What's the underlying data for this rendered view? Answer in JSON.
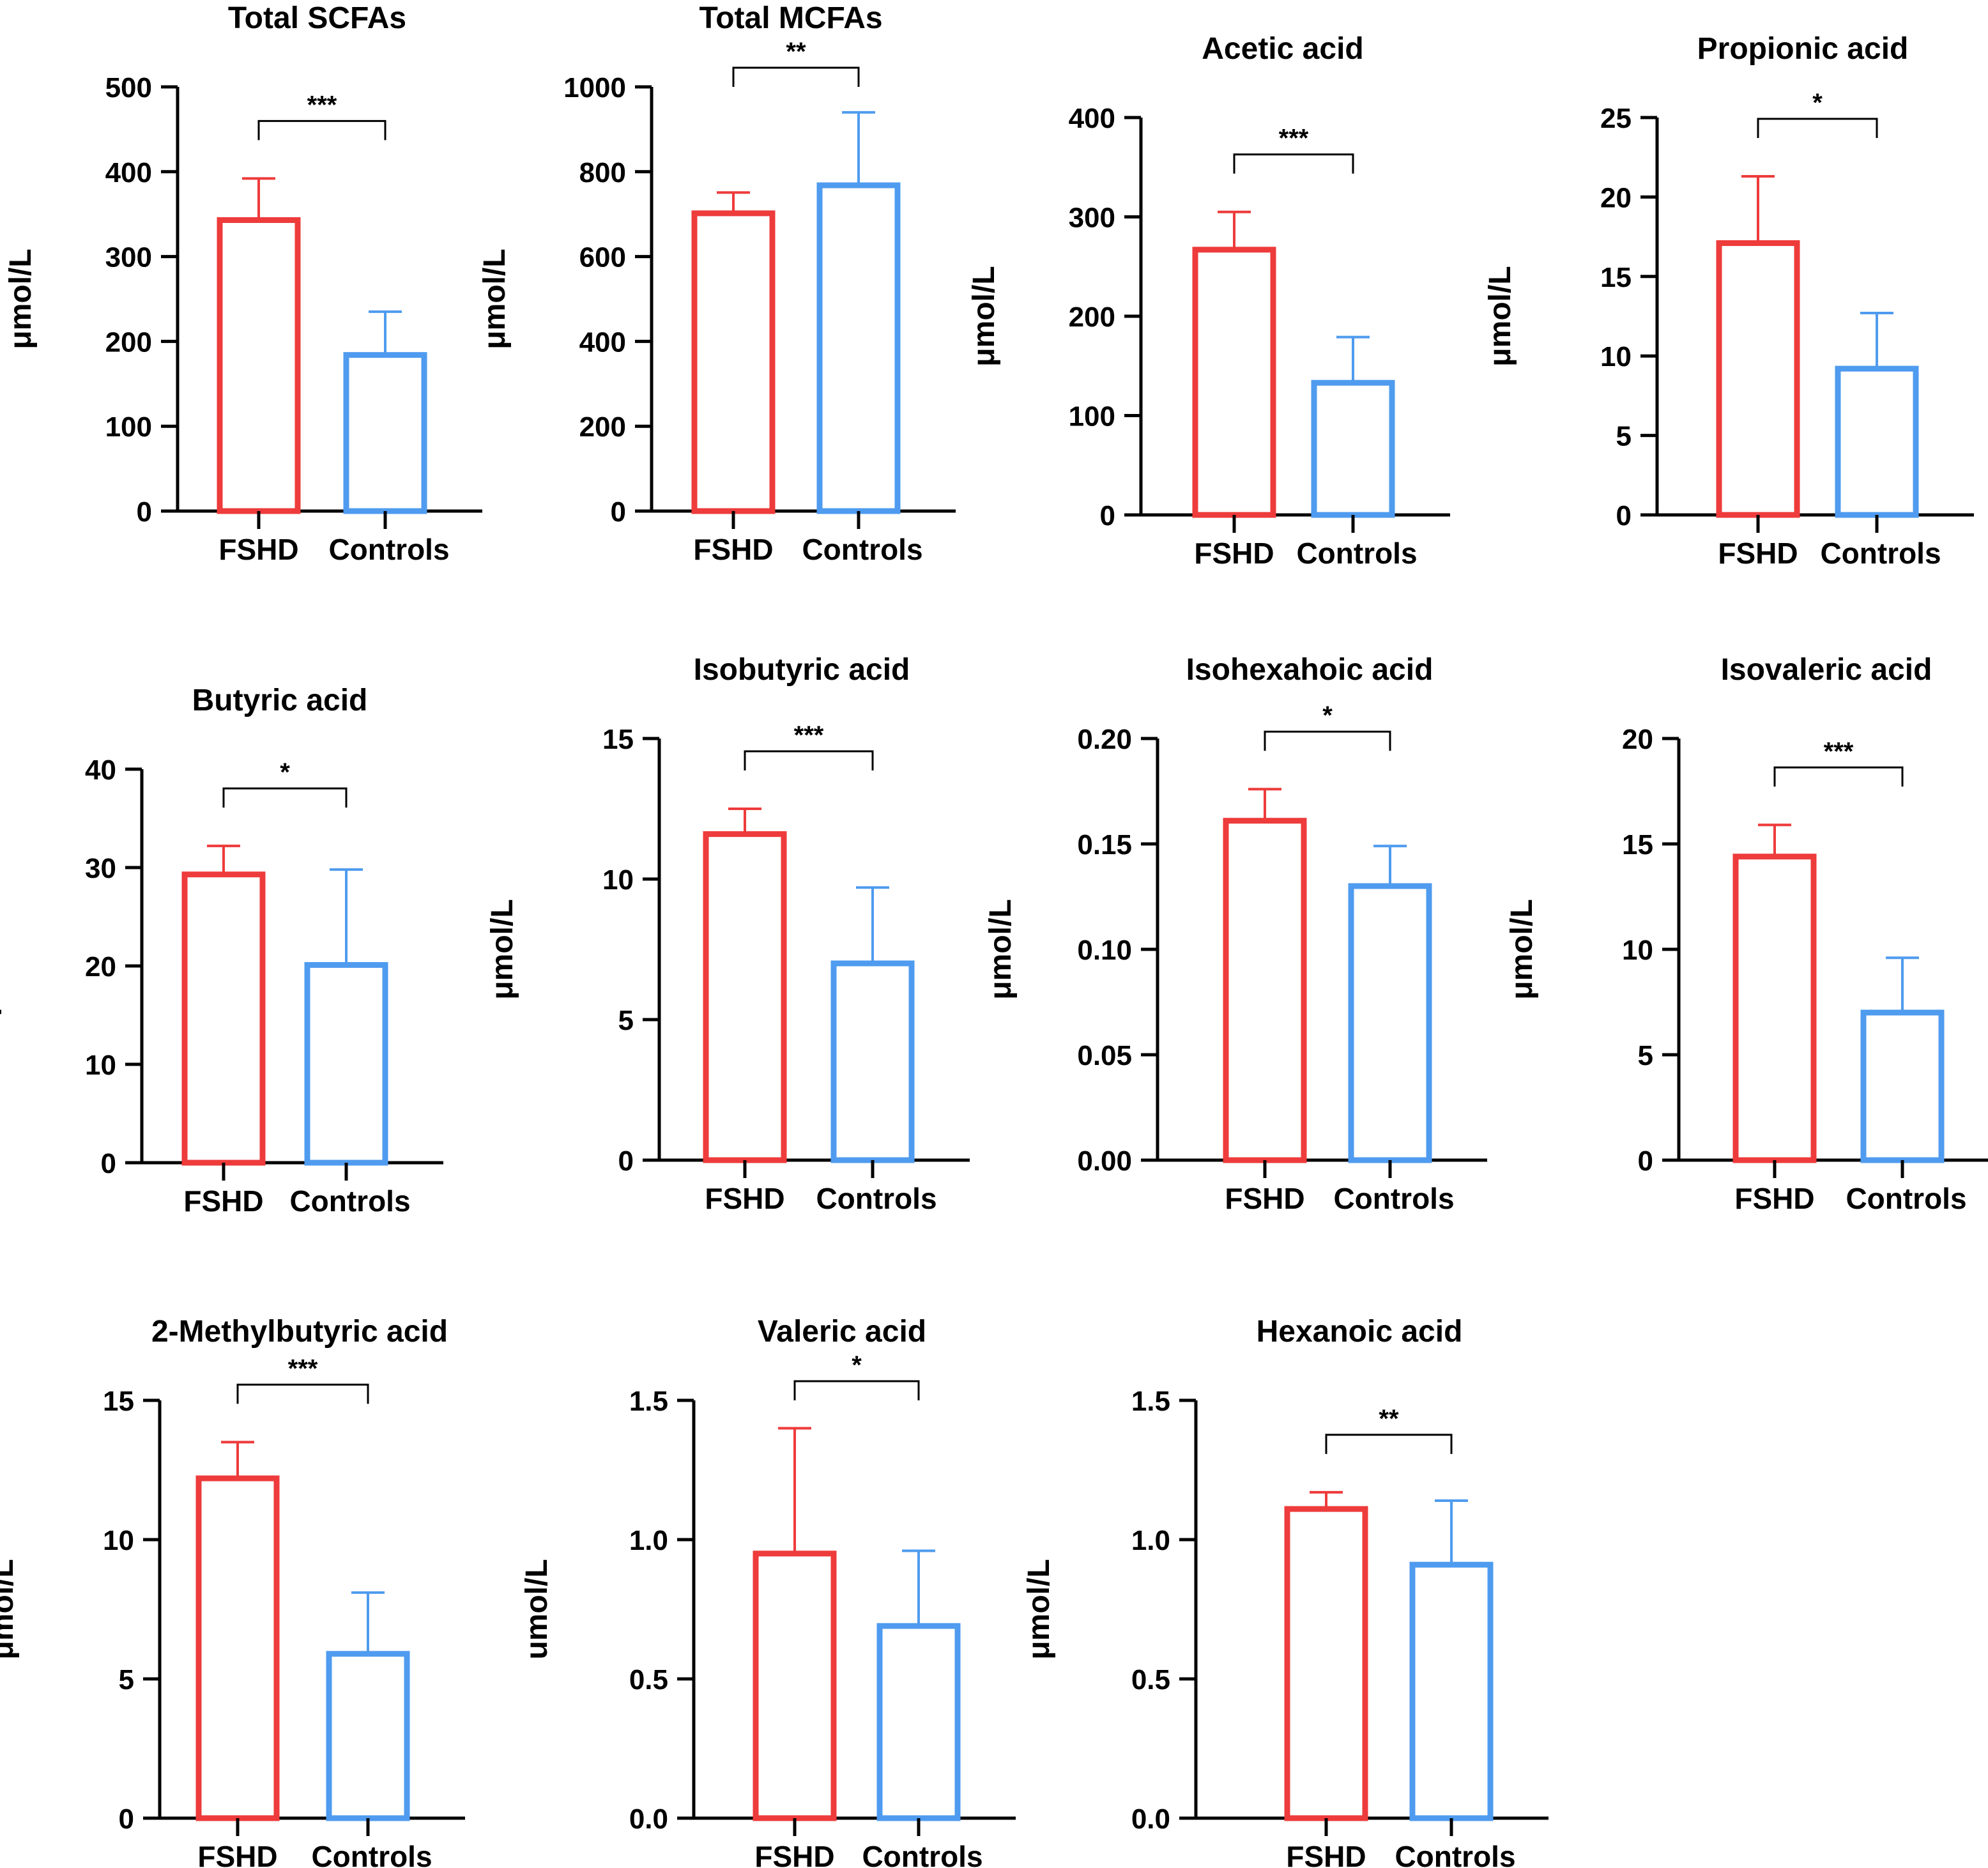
{
  "figure": {
    "group_labels": [
      "FSHD",
      "Controls"
    ],
    "colors": {
      "FSHD": "#ee3b3b",
      "Controls": "#4f9bef",
      "axis": "#000000"
    }
  },
  "chart_data": [
    {
      "type": "bar",
      "title": "Total SCFAs",
      "ylabel": "μmol/L",
      "categories": [
        "FSHD",
        "Controls"
      ],
      "values": [
        343,
        184
      ],
      "errors": [
        49,
        51
      ],
      "ylim": [
        0,
        500
      ],
      "yticks": [
        "0",
        "100",
        "200",
        "300",
        "400",
        "500"
      ],
      "significance": "***"
    },
    {
      "type": "bar",
      "title": "Total MCFAs",
      "ylabel": "μmol/L",
      "categories": [
        "FSHD",
        "Controls"
      ],
      "values": [
        702,
        768
      ],
      "errors": [
        49,
        172
      ],
      "ylim": [
        0,
        1000
      ],
      "yticks": [
        "0",
        "200",
        "400",
        "600",
        "800",
        "1000"
      ],
      "significance": "**"
    },
    {
      "type": "bar",
      "title": "Acetic acid",
      "ylabel": "μmol/L",
      "categories": [
        "FSHD",
        "Controls"
      ],
      "values": [
        267,
        133
      ],
      "errors": [
        38,
        46
      ],
      "ylim": [
        0,
        400
      ],
      "yticks": [
        "0",
        "100",
        "200",
        "300",
        "400"
      ],
      "significance": "***"
    },
    {
      "type": "bar",
      "title": "Propionic acid",
      "ylabel": "μmol/L",
      "categories": [
        "FSHD",
        "Controls"
      ],
      "values": [
        17.1,
        9.2
      ],
      "errors": [
        4.2,
        3.5
      ],
      "ylim": [
        0,
        25
      ],
      "yticks": [
        "0",
        "5",
        "10",
        "15",
        "20",
        "25"
      ],
      "significance": "*"
    },
    {
      "type": "bar",
      "title": "Butyric acid",
      "ylabel": "μmol/L",
      "categories": [
        "FSHD",
        "Controls"
      ],
      "values": [
        29.3,
        20.1
      ],
      "errors": [
        2.9,
        9.7
      ],
      "ylim": [
        0,
        40
      ],
      "yticks": [
        "0",
        "10",
        "20",
        "30",
        "40"
      ],
      "significance": "*"
    },
    {
      "type": "bar",
      "title": "Isobutyric acid",
      "ylabel": "μmol/L",
      "categories": [
        "FSHD",
        "Controls"
      ],
      "values": [
        11.6,
        7.0
      ],
      "errors": [
        0.9,
        2.7
      ],
      "ylim": [
        0,
        15
      ],
      "yticks": [
        "0",
        "5",
        "10",
        "15"
      ],
      "significance": "***"
    },
    {
      "type": "bar",
      "title": "Isohexahoic acid",
      "ylabel": "μmol/L",
      "categories": [
        "FSHD",
        "Controls"
      ],
      "values": [
        0.161,
        0.13
      ],
      "errors": [
        0.015,
        0.019
      ],
      "ylim": [
        0,
        0.2
      ],
      "yticks": [
        "0.00",
        "0.05",
        "0.10",
        "0.15",
        "0.20"
      ],
      "significance": "*"
    },
    {
      "type": "bar",
      "title": "Isovaleric acid",
      "ylabel": "μmol/L",
      "categories": [
        "FSHD",
        "Controls"
      ],
      "values": [
        14.4,
        7.0
      ],
      "errors": [
        1.5,
        2.6
      ],
      "ylim": [
        0,
        20
      ],
      "yticks": [
        "0",
        "5",
        "10",
        "15",
        "20"
      ],
      "significance": "***"
    },
    {
      "type": "bar",
      "title": "2-Methylbutyric acid",
      "ylabel": "μmol/L",
      "categories": [
        "FSHD",
        "Controls"
      ],
      "values": [
        12.2,
        5.9
      ],
      "errors": [
        1.3,
        2.2
      ],
      "ylim": [
        0,
        15
      ],
      "yticks": [
        "0",
        "5",
        "10",
        "15"
      ],
      "significance": "***"
    },
    {
      "type": "bar",
      "title": "Valeric acid",
      "ylabel": "umol/L",
      "categories": [
        "FSHD",
        "Controls"
      ],
      "values": [
        0.95,
        0.69
      ],
      "errors": [
        0.45,
        0.27
      ],
      "ylim": [
        0,
        1.5
      ],
      "yticks": [
        "0.0",
        "0.5",
        "1.0",
        "1.5"
      ],
      "significance": "*"
    },
    {
      "type": "bar",
      "title": "Hexanoic acid",
      "ylabel": "μmol/L",
      "categories": [
        "FSHD",
        "Controls"
      ],
      "values": [
        1.11,
        0.91
      ],
      "errors": [
        0.06,
        0.23
      ],
      "ylim": [
        0,
        1.5
      ],
      "yticks": [
        "0.0",
        "0.5",
        "1.0",
        "1.5"
      ],
      "significance": "**"
    }
  ]
}
